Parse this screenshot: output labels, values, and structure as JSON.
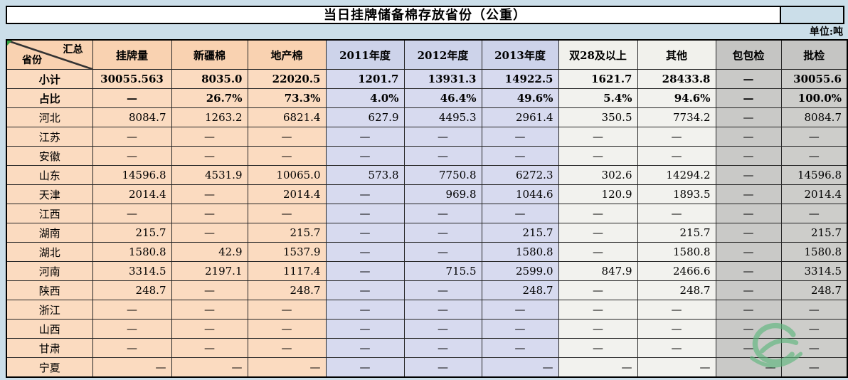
{
  "title": "当日挂牌储备棉存放省份（公重）",
  "unit_label": "单位:吨",
  "table": {
    "corner": {
      "top": "汇总",
      "bottom": "省份"
    },
    "columns": [
      "挂牌量",
      "新疆棉",
      "地产棉",
      "2011年度",
      "2012年度",
      "2013年度",
      "双28及以上",
      "其他",
      "包包检",
      "批检"
    ],
    "rows": [
      {
        "label": "小计",
        "bold": true,
        "cells": [
          "30055.563",
          "8035.0",
          "22020.5",
          "1201.7",
          "13931.3",
          "14922.5",
          "1621.7",
          "28433.8",
          "—",
          "30055.6"
        ],
        "align": [
          "center",
          "right",
          "right",
          "right",
          "right",
          "right",
          "right",
          "right",
          "center",
          "right"
        ]
      },
      {
        "label": "占比",
        "bold": true,
        "cells": [
          "—",
          "26.7%",
          "73.3%",
          "4.0%",
          "46.4%",
          "49.6%",
          "5.4%",
          "94.6%",
          "—",
          "100.0%"
        ]
      },
      {
        "label": "河北",
        "cells": [
          "8084.7",
          "1263.2",
          "6821.4",
          "627.9",
          "4495.3",
          "2961.4",
          "350.5",
          "7734.2",
          "—",
          "8084.7"
        ]
      },
      {
        "label": "江苏",
        "cells": [
          "—",
          "—",
          "—",
          "—",
          "—",
          "—",
          "—",
          "—",
          "—",
          "—"
        ]
      },
      {
        "label": "安徽",
        "cells": [
          "—",
          "—",
          "—",
          "—",
          "—",
          "—",
          "—",
          "—",
          "—",
          "—"
        ]
      },
      {
        "label": "山东",
        "cells": [
          "14596.8",
          "4531.9",
          "10065.0",
          "573.8",
          "7750.8",
          "6272.3",
          "302.6",
          "14294.2",
          "—",
          "14596.8"
        ]
      },
      {
        "label": "天津",
        "cells": [
          "2014.4",
          "—",
          "2014.4",
          "—",
          "969.8",
          "1044.6",
          "120.9",
          "1893.5",
          "—",
          "2014.4"
        ]
      },
      {
        "label": "江西",
        "cells": [
          "—",
          "—",
          "—",
          "—",
          "—",
          "—",
          "—",
          "—",
          "—",
          "—"
        ]
      },
      {
        "label": "湖南",
        "cells": [
          "215.7",
          "—",
          "215.7",
          "—",
          "—",
          "215.7",
          "—",
          "215.7",
          "—",
          "215.7"
        ]
      },
      {
        "label": "湖北",
        "cells": [
          "1580.8",
          "42.9",
          "1537.9",
          "—",
          "—",
          "1580.8",
          "—",
          "1580.8",
          "—",
          "1580.8"
        ]
      },
      {
        "label": "河南",
        "cells": [
          "3314.5",
          "2197.1",
          "1117.4",
          "—",
          "715.5",
          "2599.0",
          "847.9",
          "2466.6",
          "—",
          "3314.5"
        ]
      },
      {
        "label": "陕西",
        "cells": [
          "248.7",
          "—",
          "248.7",
          "—",
          "—",
          "248.7",
          "—",
          "248.7",
          "—",
          "248.7"
        ]
      },
      {
        "label": "浙江",
        "cells": [
          "—",
          "—",
          "—",
          "—",
          "—",
          "—",
          "—",
          "—",
          "—",
          "—"
        ]
      },
      {
        "label": "山西",
        "cells": [
          "—",
          "—",
          "—",
          "—",
          "—",
          "—",
          "—",
          "—",
          "—",
          "—"
        ]
      },
      {
        "label": "甘肃",
        "cells": [
          "—",
          "—",
          "—",
          "—",
          "—",
          "—",
          "—",
          "—",
          "—",
          "—"
        ]
      },
      {
        "label": "宁夏",
        "cells": [
          "—",
          "—",
          "—",
          "—",
          "—",
          "—",
          "—",
          "—",
          "—",
          "—"
        ],
        "align": [
          "right",
          "right",
          "right",
          "center",
          "center",
          "right",
          "right",
          "right",
          "right",
          "center"
        ]
      }
    ]
  },
  "colors": {
    "page_background": "#CBDEE9",
    "title_background": "#FFFFFF",
    "peach_header": "#F9D2B1",
    "peach_body": "#FBDBC0",
    "lavender_header": "#CDD3EA",
    "lavender_body": "#D7DAEF",
    "offwhite_column": "#F2F2EE",
    "gray_column": "#C9C9C7",
    "border": "#262626",
    "logo_green": "#5FB77E",
    "corner_marker_green": "#2F9E3E"
  },
  "icons": {
    "watermark": "e-cotton-logo",
    "corner_marker": "excel-green-triangle"
  }
}
